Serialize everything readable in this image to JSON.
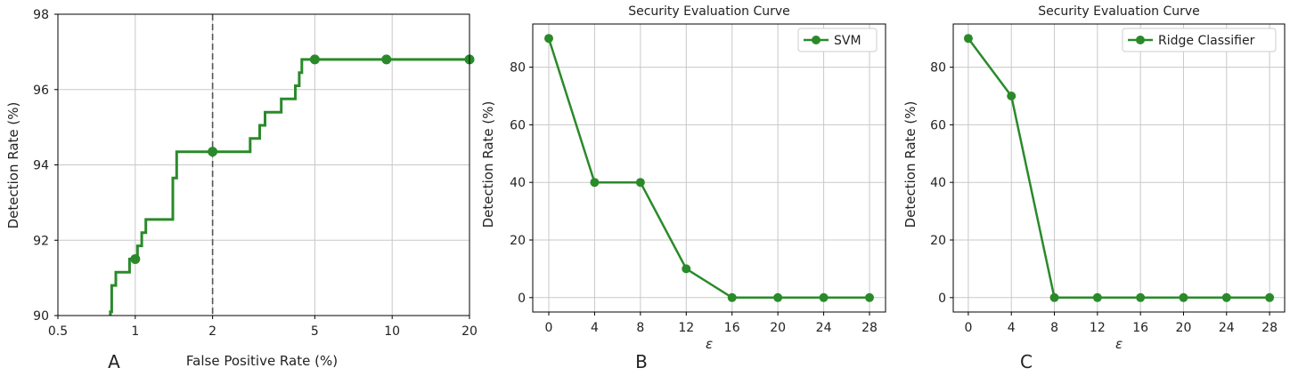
{
  "colors": {
    "series": "#2a8a2a",
    "grid": "#c8c8c8",
    "axis": "#000000",
    "vline": "#555555"
  },
  "chart_data": [
    {
      "type": "line",
      "panel_label": "A",
      "title": "",
      "xlabel": "False Positive Rate (%)",
      "ylabel": "Detection Rate (%)",
      "xscale": "log",
      "xlim": [
        0.5,
        20
      ],
      "ylim": [
        90,
        98
      ],
      "xticks": [
        0.5,
        1,
        2,
        5,
        10,
        20
      ],
      "xtick_labels": [
        "0.5",
        "1",
        "2",
        "5",
        "10",
        "20"
      ],
      "yticks": [
        90,
        92,
        94,
        96,
        98
      ],
      "ytick_labels": [
        "90",
        "92",
        "94",
        "96",
        "98"
      ],
      "grid": true,
      "vline_x": 2,
      "series": [
        {
          "step_x": [
            0.8,
            0.8,
            0.81,
            0.81,
            0.84,
            0.84,
            0.95,
            0.95,
            1.02,
            1.02,
            1.06,
            1.06,
            1.1,
            1.1,
            1.12,
            1.12,
            1.4,
            1.4,
            1.45,
            1.45,
            2.8,
            2.8,
            3.05,
            3.05,
            3.2,
            3.2,
            3.7,
            3.7,
            4.2,
            4.2,
            4.35,
            4.35,
            4.45,
            4.45,
            20
          ],
          "step_y": [
            90,
            90.1,
            90.1,
            90.8,
            90.8,
            91.15,
            91.15,
            91.5,
            91.5,
            91.85,
            91.85,
            92.2,
            92.2,
            92.55,
            92.55,
            92.55,
            92.55,
            93.65,
            93.65,
            94.35,
            94.35,
            94.7,
            94.7,
            95.05,
            95.05,
            95.4,
            95.4,
            95.75,
            95.75,
            96.1,
            96.1,
            96.45,
            96.45,
            96.8,
            96.8
          ],
          "marker_x": [
            1.0,
            2.0,
            5.0,
            9.5,
            20
          ],
          "marker_y": [
            91.5,
            94.35,
            96.8,
            96.8,
            96.8
          ]
        }
      ]
    },
    {
      "type": "line",
      "panel_label": "B",
      "title": "Security Evaluation Curve",
      "xlabel": "ε",
      "ylabel": "Detection Rate (%)",
      "xlim": [
        -1.4,
        29.4
      ],
      "ylim": [
        -5,
        95
      ],
      "xticks": [
        0,
        4,
        8,
        12,
        16,
        20,
        24,
        28
      ],
      "xtick_labels": [
        "0",
        "4",
        "8",
        "12",
        "16",
        "20",
        "24",
        "28"
      ],
      "yticks": [
        0,
        20,
        40,
        60,
        80
      ],
      "ytick_labels": [
        "0",
        "20",
        "40",
        "60",
        "80"
      ],
      "grid": true,
      "legend_position": "top-right",
      "series": [
        {
          "name": "SVM",
          "x": [
            0,
            4,
            8,
            12,
            16,
            20,
            24,
            28
          ],
          "y": [
            90,
            40,
            40,
            10,
            0,
            0,
            0,
            0
          ]
        }
      ]
    },
    {
      "type": "line",
      "panel_label": "C",
      "title": "Security Evaluation Curve",
      "xlabel": "ε",
      "ylabel": "Detection Rate (%)",
      "xlim": [
        -1.4,
        29.4
      ],
      "ylim": [
        -5,
        95
      ],
      "xticks": [
        0,
        4,
        8,
        12,
        16,
        20,
        24,
        28
      ],
      "xtick_labels": [
        "0",
        "4",
        "8",
        "12",
        "16",
        "20",
        "24",
        "28"
      ],
      "yticks": [
        0,
        20,
        40,
        60,
        80
      ],
      "ytick_labels": [
        "0",
        "20",
        "40",
        "60",
        "80"
      ],
      "grid": true,
      "legend_position": "top-right",
      "series": [
        {
          "name": "Ridge Classifier",
          "x": [
            0,
            4,
            8,
            12,
            16,
            20,
            24,
            28
          ],
          "y": [
            90,
            70,
            0,
            0,
            0,
            0,
            0,
            0
          ]
        }
      ]
    }
  ]
}
